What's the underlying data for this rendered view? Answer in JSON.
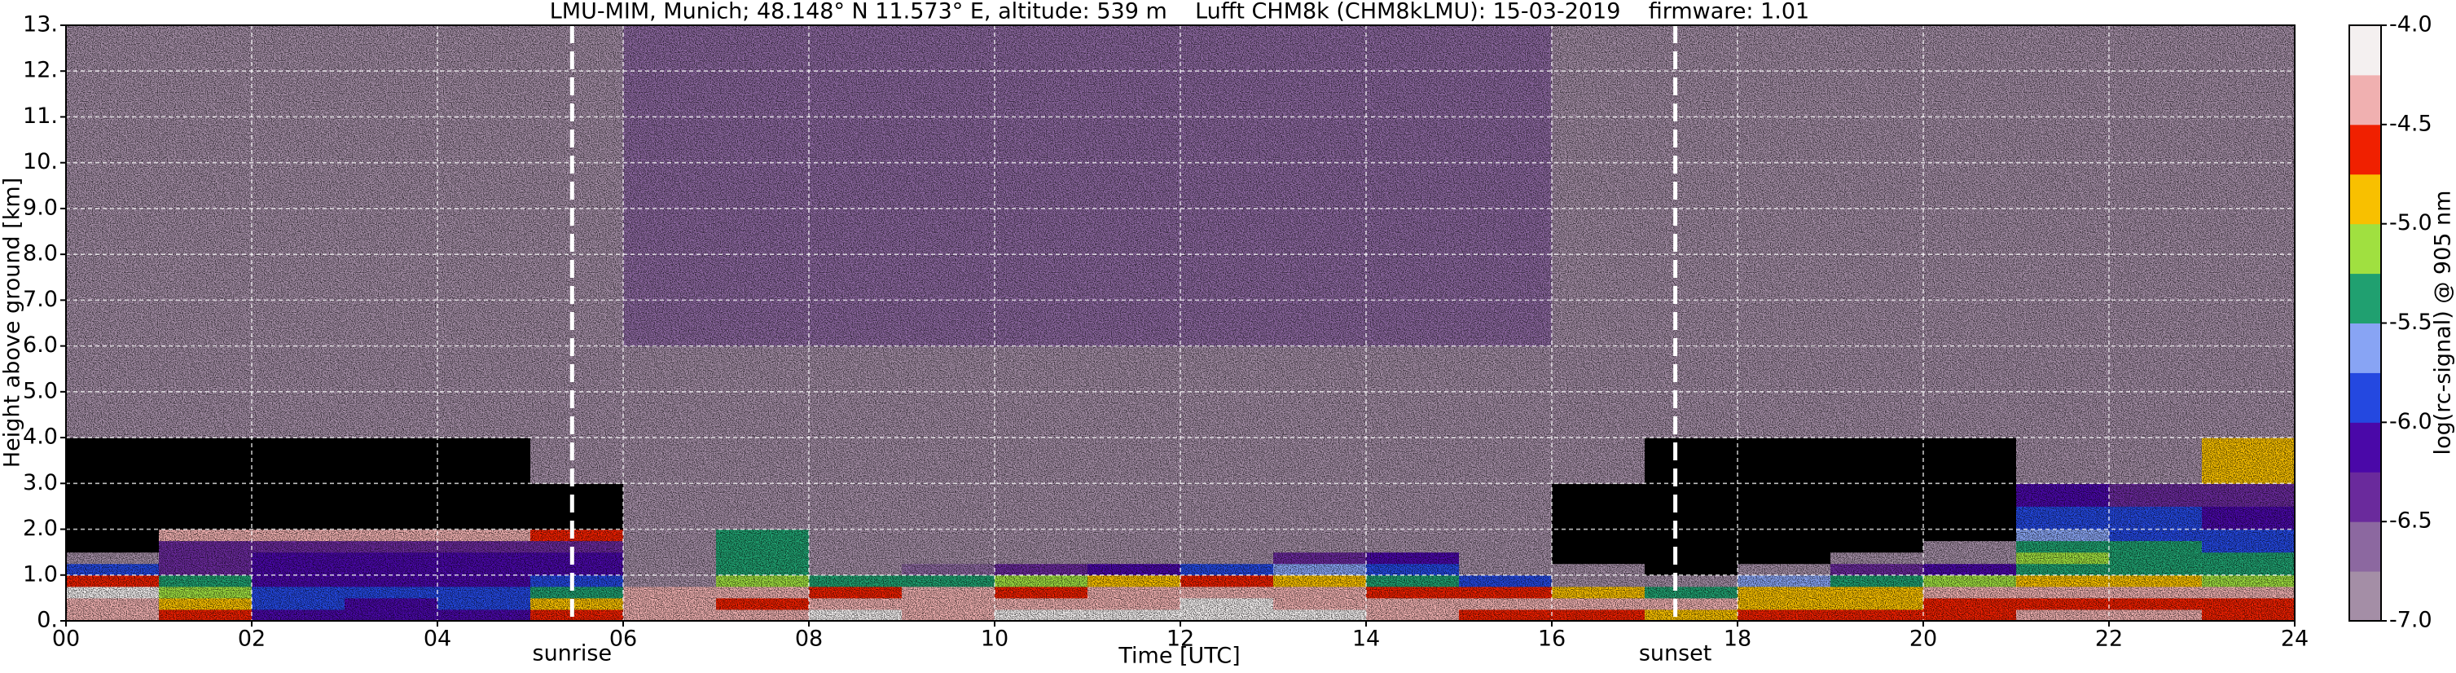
{
  "chart_data": {
    "type": "heatmap",
    "title": "LMU-MIM, Munich; 48.148° N 11.573° E, altitude: 539 m    Lufft CHM8k (CHM8kLMU): 15-03-2019    firmware: 1.01",
    "x_label": "Time [UTC]",
    "y_label": "Height above ground [km]",
    "colorbar_label": "log(rc-signal) @ 905 nm",
    "xbins": [
      0,
      1,
      2,
      3,
      4,
      5,
      6,
      7,
      8,
      9,
      10,
      11,
      12,
      13,
      14,
      15,
      16,
      17,
      18,
      19,
      20,
      21,
      22,
      23,
      24
    ],
    "ybins": [
      0,
      0.25,
      0.5,
      0.75,
      1,
      1.25,
      1.5,
      1.75,
      2,
      2.5,
      3,
      4,
      6,
      8,
      13
    ],
    "z": [
      [
        -4.4,
        -4.6,
        -6.2,
        -6.2,
        -6.2,
        -4.6,
        -4.3,
        -4.5,
        -4.2,
        -4.3,
        -4.2,
        -4.2,
        -4.1,
        -4.2,
        -4.3,
        -4.6,
        -4.6,
        -4.8,
        -4.6,
        -4.7,
        -4.6,
        -4.5,
        -4.5,
        -4.6
      ],
      [
        -4.3,
        -5.0,
        -6.0,
        -6.1,
        -6.0,
        -4.8,
        -4.5,
        -4.6,
        -4.3,
        -4.4,
        -4.5,
        -4.3,
        -4.2,
        -4.3,
        -4.4,
        -4.4,
        -4.3,
        -4.3,
        -4.8,
        -4.8,
        -4.7,
        -4.6,
        -4.6,
        -4.7
      ],
      [
        -4.2,
        -5.2,
        -5.9,
        -6.0,
        -5.8,
        -5.5,
        -4.3,
        -4.5,
        -4.6,
        -4.5,
        -4.6,
        -4.5,
        -4.3,
        -4.4,
        -4.6,
        -4.7,
        -5.0,
        -5.3,
        -4.9,
        -4.8,
        -4.5,
        -4.5,
        -4.5,
        -4.5
      ],
      [
        -4.6,
        -5.4,
        -6.2,
        -6.2,
        -6.1,
        -5.9,
        -6.9,
        -5.2,
        -5.5,
        -5.3,
        -5.2,
        -5.0,
        -4.7,
        -4.8,
        -5.3,
        -5.8,
        -6.9,
        -6.9,
        -5.6,
        -5.3,
        -5.1,
        -5.0,
        -5.0,
        -5.1
      ],
      [
        -6.0,
        -6.3,
        -6.2,
        -6.2,
        -6.2,
        -6.1,
        -6.9,
        -5.5,
        -6.8,
        -6.6,
        -6.5,
        -6.2,
        -5.8,
        -5.6,
        -5.8,
        -6.8,
        -6.9,
        -7.2,
        -6.8,
        -6.5,
        -6.2,
        -5.3,
        -5.3,
        -5.4
      ],
      [
        -6.9,
        -6.4,
        -6.2,
        -6.2,
        -6.2,
        -6.2,
        -6.9,
        -5.3,
        -6.9,
        -6.9,
        -6.9,
        -6.9,
        -6.9,
        -6.5,
        -6.2,
        -6.9,
        -7.2,
        -7.2,
        -7.2,
        -7.0,
        -6.8,
        -5.2,
        -5.4,
        -5.5
      ],
      [
        -7.2,
        -6.5,
        -6.4,
        -6.3,
        -6.3,
        -6.3,
        -6.9,
        -5.4,
        -6.9,
        -6.9,
        -6.9,
        -6.9,
        -6.9,
        -6.9,
        -6.9,
        -6.9,
        -7.2,
        -7.2,
        -7.2,
        -7.2,
        -7.0,
        -5.4,
        -5.5,
        -5.8
      ],
      [
        -7.2,
        -4.4,
        -4.3,
        -4.4,
        -4.3,
        -4.6,
        -6.9,
        -5.3,
        -6.9,
        -6.9,
        -6.9,
        -6.9,
        -6.9,
        -6.9,
        -6.9,
        -6.9,
        -7.2,
        -7.2,
        -7.2,
        -7.2,
        -7.2,
        -5.6,
        -5.8,
        -6.0
      ],
      [
        -7.2,
        -7.2,
        -7.2,
        -7.2,
        -7.2,
        -7.1,
        -6.9,
        -6.9,
        -6.9,
        -6.9,
        -6.9,
        -6.9,
        -6.9,
        -6.9,
        -6.9,
        -6.9,
        -7.1,
        -7.2,
        -7.2,
        -7.2,
        -7.2,
        -5.9,
        -6.0,
        -6.1
      ],
      [
        -7.2,
        -7.2,
        -7.2,
        -7.2,
        -7.2,
        -7.1,
        -6.9,
        -6.9,
        -6.9,
        -6.9,
        -6.9,
        -6.9,
        -6.9,
        -6.9,
        -6.9,
        -6.9,
        -7.1,
        -7.2,
        -7.2,
        -7.2,
        -7.2,
        -6.2,
        -6.3,
        -6.4
      ],
      [
        -7.2,
        -7.2,
        -7.2,
        -7.2,
        -7.2,
        -7.0,
        -6.9,
        -6.9,
        -6.9,
        -6.9,
        -6.9,
        -6.9,
        -6.9,
        -6.9,
        -6.9,
        -6.9,
        -7.0,
        -7.2,
        -7.2,
        -7.2,
        -7.2,
        -6.8,
        -6.9,
        -5.0
      ],
      [
        -7.0,
        -7.0,
        -7.0,
        -7.0,
        -7.0,
        -6.9,
        -6.8,
        -6.8,
        -6.8,
        -6.8,
        -6.8,
        -6.8,
        -6.8,
        -6.8,
        -6.8,
        -6.8,
        -6.9,
        -7.0,
        -7.0,
        -7.0,
        -7.0,
        -7.0,
        -7.0,
        -7.0
      ],
      [
        -6.9,
        -6.9,
        -6.9,
        -6.9,
        -6.9,
        -6.8,
        -6.7,
        -6.7,
        -6.7,
        -6.7,
        -6.7,
        -6.7,
        -6.7,
        -6.7,
        -6.7,
        -6.7,
        -6.8,
        -6.9,
        -6.9,
        -6.9,
        -6.9,
        -6.9,
        -6.9,
        -6.9
      ],
      [
        -6.9,
        -6.9,
        -6.9,
        -6.9,
        -6.9,
        -6.8,
        -6.7,
        -6.7,
        -6.7,
        -6.7,
        -6.7,
        -6.7,
        -6.7,
        -6.7,
        -6.7,
        -6.7,
        -6.8,
        -6.9,
        -6.9,
        -6.9,
        -6.9,
        -6.9,
        -6.9,
        -6.9
      ]
    ],
    "zlim": [
      -7,
      -4
    ],
    "colormap": [
      "#a48ea6",
      "#8c68a0",
      "#6a2a9c",
      "#4a08a8",
      "#2448e0",
      "#88a4f4",
      "#20a070",
      "#a0e040",
      "#f8c000",
      "#f02000",
      "#f0b0b0",
      "#f4f0f0"
    ],
    "under_color": "#000000",
    "zticks": [
      {
        "value": -4,
        "label": "-4.0"
      },
      -4.5,
      {
        "value": -5,
        "label": "-5.0"
      },
      -5.5,
      {
        "value": -6,
        "label": "-6.0"
      },
      -6.5,
      {
        "value": -7,
        "label": "-7.0"
      }
    ],
    "xlim": [
      0,
      24
    ],
    "ylim": [
      0,
      13
    ],
    "xticks": [
      {
        "value": 0,
        "label": "00"
      },
      {
        "value": 2,
        "label": "02"
      },
      {
        "value": 4,
        "label": "04"
      },
      {
        "value": 6,
        "label": "06"
      },
      {
        "value": 8,
        "label": "08"
      },
      10,
      12,
      14,
      16,
      18,
      20,
      22,
      24
    ],
    "yticks": [
      {
        "value": 0,
        "label": "0."
      },
      {
        "value": 1,
        "label": "1.0"
      },
      {
        "value": 2,
        "label": "2.0"
      },
      {
        "value": 3,
        "label": "3.0"
      },
      {
        "value": 4,
        "label": "4.0"
      },
      {
        "value": 5,
        "label": "5.0"
      },
      {
        "value": 6,
        "label": "6.0"
      },
      {
        "value": 7,
        "label": "7.0"
      },
      {
        "value": 8,
        "label": "8.0"
      },
      {
        "value": 9,
        "label": "9.0"
      },
      {
        "value": 10,
        "label": "10."
      },
      {
        "value": 11,
        "label": "11."
      },
      {
        "value": 12,
        "label": "12."
      },
      {
        "value": 13,
        "label": "13."
      }
    ],
    "grid": true,
    "annotations": [
      {
        "x": 5.45,
        "label": "sunrise"
      },
      {
        "x": 17.33,
        "label": "sunset"
      }
    ]
  }
}
